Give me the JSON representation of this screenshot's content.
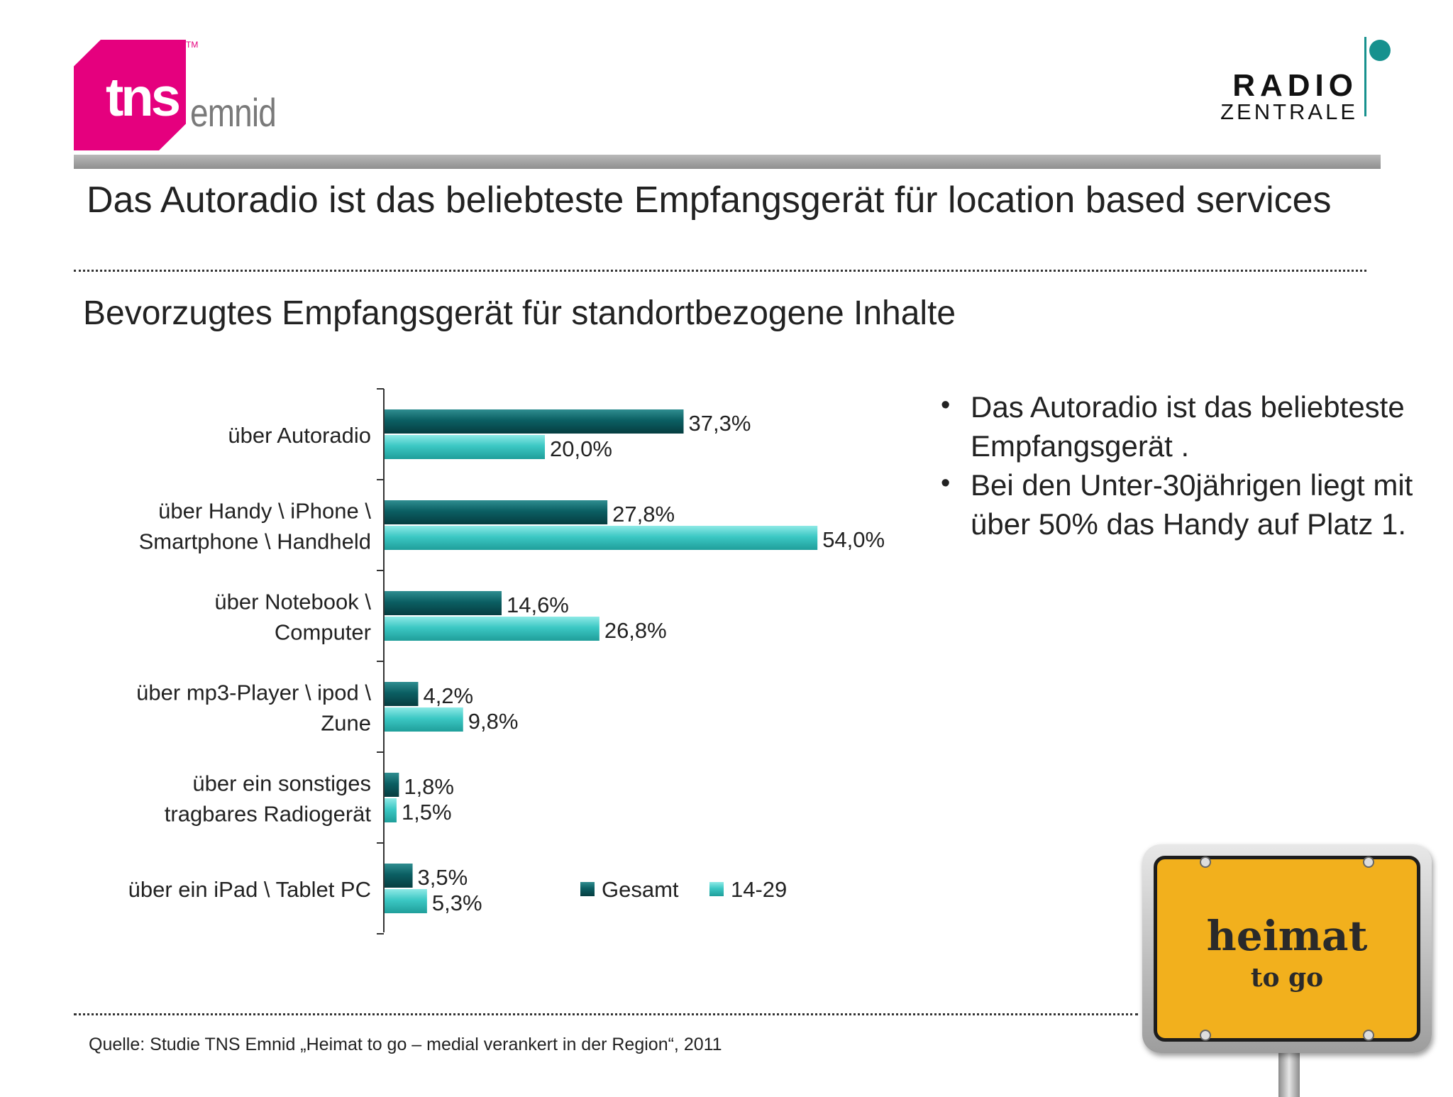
{
  "logos": {
    "left": {
      "brand": "tns",
      "tm": "TM",
      "suffix": "emnid",
      "color": "#e5007e"
    },
    "right": {
      "line1": "RADIO",
      "line2": "ZENTRALE",
      "accent": "#17918e"
    }
  },
  "title": "Das Autoradio ist das beliebteste Empfangsgerät für location based services",
  "subtitle": "Bevorzugtes Empfangsgerät für standortbezogene Inhalte",
  "chart_data": {
    "type": "bar",
    "orientation": "horizontal",
    "categories": [
      "über Autoradio",
      "über Handy \\ iPhone \\ Smartphone \\ Handheld",
      "über Notebook \\ Computer",
      "über mp3-Player \\ ipod \\ Zune",
      "über ein sonstiges tragbares Radiogerät",
      "über ein iPad \\ Tablet PC"
    ],
    "category_lines": [
      [
        "über Autoradio"
      ],
      [
        "über Handy \\ iPhone \\",
        "Smartphone \\ Handheld"
      ],
      [
        "über Notebook \\",
        "Computer"
      ],
      [
        "über mp3-Player \\ ipod \\",
        "Zune"
      ],
      [
        "über ein sonstiges",
        "tragbares Radiogerät"
      ],
      [
        "über ein iPad \\ Tablet PC"
      ]
    ],
    "series": [
      {
        "name": "Gesamt",
        "values": [
          37.3,
          27.8,
          14.6,
          4.2,
          1.8,
          3.5
        ],
        "labels": [
          "37,3%",
          "27,8%",
          "14,6%",
          "4,2%",
          "1,8%",
          "3,5%"
        ],
        "color": "#0b5f63"
      },
      {
        "name": "14-29",
        "values": [
          20.0,
          54.0,
          26.8,
          9.8,
          1.5,
          5.3
        ],
        "labels": [
          "20,0%",
          "54,0%",
          "26,8%",
          "9,8%",
          "1,5%",
          "5,3%"
        ],
        "color": "#3cc8c4"
      }
    ],
    "xlim": [
      0,
      60
    ],
    "legend": "bottom-right",
    "grid": false
  },
  "bullets": [
    "Das Autoradio ist das beliebteste Empfangsgerät .",
    "Bei den Unter-30jährigen liegt mit über 50% das Handy auf Platz 1."
  ],
  "sign": {
    "line1": "heimat",
    "line2": "to go"
  },
  "source": "Quelle: Studie TNS Emnid „Heimat to go  – medial verankert in der Region“, 2011"
}
